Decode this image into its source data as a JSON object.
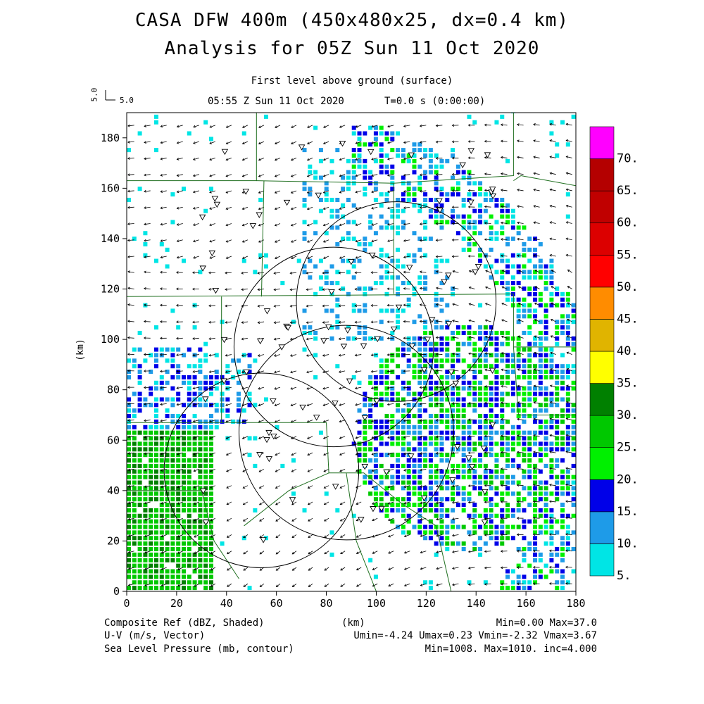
{
  "header": {
    "title": "CASA DFW 400m (450x480x25, dx=0.4 km)",
    "subtitle": "Analysis for 05Z Sun 11 Oct 2020",
    "level": "First level above ground (surface)",
    "time": "05:55 Z Sun 11 Oct 2020",
    "timer": "T=0.0 s (0:00:00)",
    "vector_scale_a": "5.0",
    "vector_scale_b": "5.0"
  },
  "footer": {
    "left1": "Composite Ref (dBZ, Shaded)",
    "left2": "U-V (m/s, Vector)",
    "left3": "Sea Level Pressure (mb, contour)",
    "center": "(km)",
    "right1": "Min=0.00 Max=37.0",
    "right2": "Umin=-4.24 Umax=0.23 Vmin=-2.32 Vmax=3.67",
    "right3": "Min=1008. Max=1010. inc=4.000"
  },
  "chart_data": {
    "type": "heatmap",
    "xlabel": "",
    "ylabel": "(km)",
    "xlim": [
      0,
      180
    ],
    "ylim": [
      0,
      190
    ],
    "xticks": [
      "0",
      "20",
      "40",
      "60",
      "80",
      "100",
      "120",
      "140",
      "160",
      "180"
    ],
    "yticks": [
      "0",
      "20",
      "40",
      "60",
      "80",
      "100",
      "120",
      "140",
      "160",
      "180"
    ],
    "colorbar": {
      "labels": [
        "5.",
        "10.",
        "15.",
        "20.",
        "25.",
        "30.",
        "35.",
        "40.",
        "45.",
        "50.",
        "55.",
        "60.",
        "65.",
        "70."
      ],
      "colors": [
        "#00e5e5",
        "#1e9be8",
        "#0000e8",
        "#00f000",
        "#00c800",
        "#008000",
        "#ffff00",
        "#e0b400",
        "#ff8c00",
        "#ff0000",
        "#dc0000",
        "#c00000",
        "#b40000",
        "#ff00ff"
      ]
    },
    "radar_circles": [
      {
        "cx": 54,
        "cy": 48,
        "r": 39
      },
      {
        "cx": 88,
        "cy": 63,
        "r": 43
      },
      {
        "cx": 83,
        "cy": 97,
        "r": 40
      },
      {
        "cx": 108,
        "cy": 115,
        "r": 40
      }
    ]
  }
}
